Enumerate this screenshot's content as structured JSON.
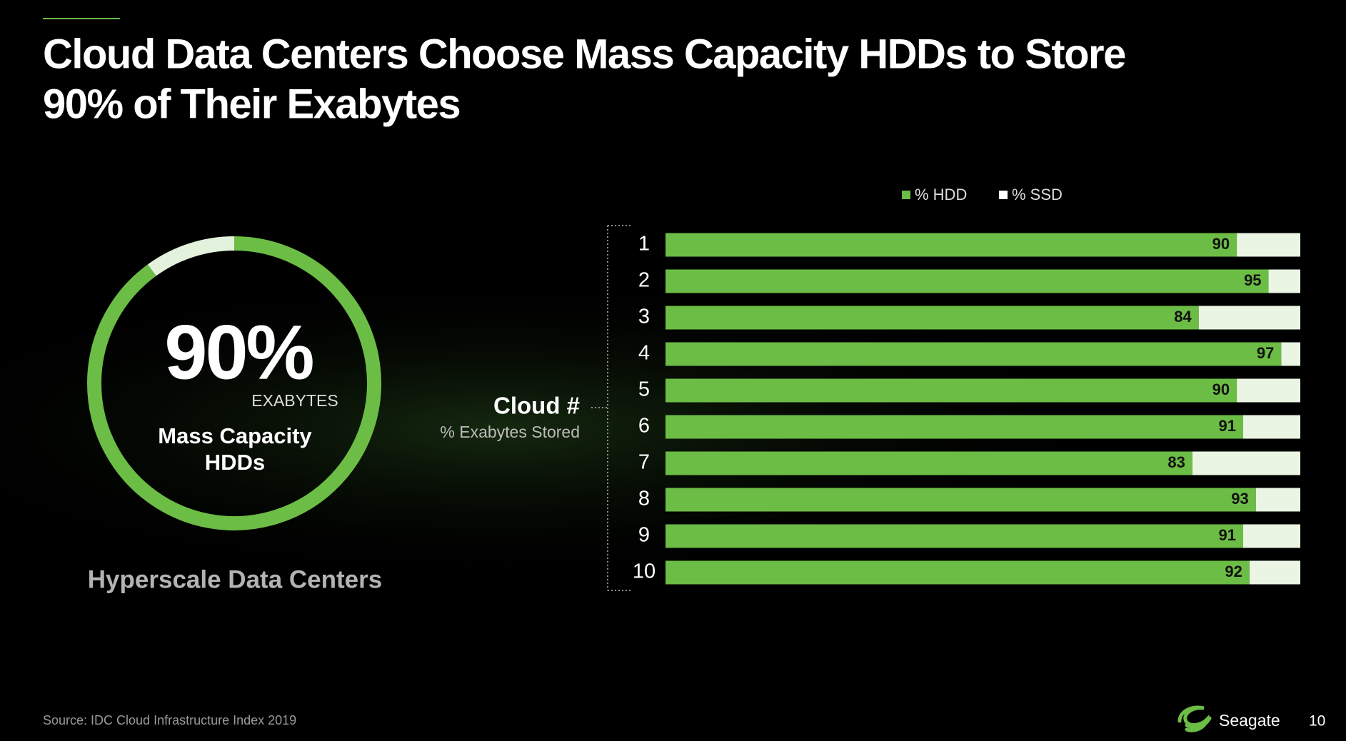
{
  "slide": {
    "title": [
      "Cloud Data Centers Choose Mass Capacity HDDs to Store",
      "90% of Their Exabytes"
    ],
    "source": "Source: IDC Cloud Infrastructure Index 2019",
    "brand": "Seagate",
    "page": "10"
  },
  "chart_data": [
    {
      "type": "pie",
      "values": [
        90,
        10
      ],
      "value_labels": [
        "90%",
        null
      ],
      "colors": [
        "#6cbd45",
        "#e3f2dc"
      ],
      "unit_label": "EXABYTES",
      "label": [
        "Mass Capacity",
        "HDDs"
      ],
      "caption": "Hyperscale Data Centers"
    },
    {
      "type": "bar",
      "orientation": "horizontal",
      "stacked": true,
      "axis_title": "Cloud #",
      "axis_subtitle": "% Exabytes Stored",
      "categories": [
        "1",
        "2",
        "3",
        "4",
        "5",
        "6",
        "7",
        "8",
        "9",
        "10"
      ],
      "series": [
        {
          "name": "% HDD",
          "color": "#6cbd45",
          "values": [
            90,
            95,
            84,
            97,
            90,
            91,
            83,
            93,
            91,
            92
          ]
        },
        {
          "name": "% SSD",
          "color": "#eaf5e4",
          "values": [
            10,
            5,
            16,
            3,
            10,
            9,
            17,
            7,
            9,
            8
          ]
        }
      ],
      "xlim": [
        0,
        100
      ],
      "legend": "top"
    }
  ]
}
